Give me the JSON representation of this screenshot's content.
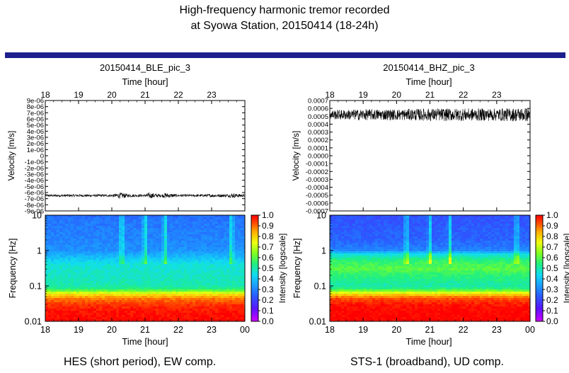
{
  "figure": {
    "title_lines": [
      "High-frequency harmonic tremor recorded",
      "at Syowa Station, 20150414 (18-24h)"
    ],
    "colors": {
      "title_rule": "#1c1f8c",
      "background": "#ffffff",
      "trace": "#000000"
    }
  },
  "panels": [
    {
      "id": "left",
      "panel_title": "20150414_BLE_pic_3",
      "top_xlabel": "Time [hour]",
      "caption": "HES (short period), EW comp.",
      "chart_data": [
        {
          "type": "line",
          "title": "",
          "xlabel": "Time [hour]",
          "ylabel": "Velocity [m/s]",
          "xlim": [
            18,
            24
          ],
          "xtick_labels": [
            "18",
            "19",
            "20",
            "21",
            "22",
            "23"
          ],
          "ylim": [
            -9e-06,
            9e-06
          ],
          "ytick_labels": [
            "9e-06",
            "8e-06",
            "7e-06",
            "6e-06",
            "5e-06",
            "4e-06",
            "3e-06",
            "2e-06",
            "1e-06",
            "0",
            "-1e-06",
            "-2e-06",
            "-3e-06",
            "-4e-06",
            "-5e-06",
            "-6e-06",
            "-7e-06",
            "-8e-06",
            "-9e-06"
          ],
          "series": [
            {
              "baseline": -6.5e-06,
              "x": [
                18.0,
                18.5,
                19.0,
                19.5,
                20.0,
                20.3,
                20.5,
                21.0,
                21.1,
                21.5,
                21.6,
                22.0,
                22.5,
                23.0,
                23.5,
                23.6,
                24.0
              ],
              "amplitude": [
                2e-07,
                2e-07,
                2e-07,
                2e-07,
                2e-07,
                5e-07,
                2.5e-07,
                2e-07,
                5e-07,
                2e-07,
                4.5e-07,
                2e-07,
                2e-07,
                2.5e-07,
                2.5e-07,
                4e-07,
                2e-07
              ]
            }
          ],
          "grid": false
        },
        {
          "type": "heatmap",
          "title": "",
          "xlabel": "Time [hour]",
          "ylabel": "Frequency [Hz]",
          "xlim": [
            18,
            24
          ],
          "xtick_labels": [
            "18",
            "19",
            "20",
            "21",
            "22",
            "23",
            "00"
          ],
          "ylim": [
            0.01,
            10
          ],
          "yscale": "log",
          "ytick_labels": [
            "10",
            "1",
            "0.1",
            "0.01"
          ],
          "colorbar": {
            "label": "Intensity [logscale]",
            "range": [
              0.0,
              1.0
            ],
            "tick_labels": [
              "1.0",
              "0.9",
              "0.8",
              "0.7",
              "0.6",
              "0.5",
              "0.4",
              "0.3",
              "0.2",
              "0.1",
              "0.0"
            ]
          },
          "frequencies": [
            0.01,
            0.02,
            0.03,
            0.045,
            0.06,
            0.08,
            0.1,
            0.2,
            0.4,
            0.6,
            1,
            2,
            4,
            7,
            10
          ],
          "intensity": [
            1.0,
            0.98,
            0.95,
            0.88,
            0.76,
            0.55,
            0.5,
            0.48,
            0.46,
            0.4,
            0.32,
            0.3,
            0.29,
            0.28,
            0.26
          ],
          "tremor_bursts_hour": [
            20.3,
            21.0,
            21.6,
            23.6
          ],
          "grid": false
        }
      ]
    },
    {
      "id": "right",
      "panel_title": "20150414_BHZ_pic_3",
      "top_xlabel": "Time [hour]",
      "caption": "STS-1 (broadband), UD comp.",
      "chart_data": [
        {
          "type": "line",
          "title": "",
          "xlabel": "Time [hour]",
          "ylabel": "Velocity [m/s]",
          "xlim": [
            18,
            24
          ],
          "xtick_labels": [
            "18",
            "19",
            "20",
            "21",
            "22",
            "23"
          ],
          "ylim": [
            -0.0007,
            0.0007
          ],
          "ytick_labels": [
            "0.0007",
            "0.0006",
            "0.0005",
            "0.0004",
            "0.0003",
            "0.0002",
            "0.0001",
            "0.0000",
            "-0.0001",
            "-0.0002",
            "-0.0003",
            "-0.0004",
            "-0.0005",
            "-0.0006",
            "-0.0007"
          ],
          "series": [
            {
              "baseline": 0.00052,
              "x": [
                18.0,
                19.0,
                20.0,
                21.0,
                22.0,
                23.0,
                24.0
              ],
              "amplitude": [
                6e-05,
                7e-05,
                7e-05,
                8e-05,
                8e-05,
                8e-05,
                9e-05
              ]
            }
          ],
          "grid": false
        },
        {
          "type": "heatmap",
          "title": "",
          "xlabel": "Time [hour]",
          "ylabel": "Frequency [Hz]",
          "xlim": [
            18,
            24
          ],
          "xtick_labels": [
            "18",
            "19",
            "20",
            "21",
            "22",
            "23",
            "00"
          ],
          "ylim": [
            0.01,
            10
          ],
          "yscale": "log",
          "ytick_labels": [
            "10",
            "1",
            "0.1",
            "0.01"
          ],
          "colorbar": {
            "label": "Intensity [logscale]",
            "range": [
              0.0,
              1.0
            ],
            "tick_labels": [
              "1.0",
              "0.9",
              "0.8",
              "0.7",
              "0.6",
              "0.5",
              "0.4",
              "0.3",
              "0.2",
              "0.1",
              "0.0"
            ]
          },
          "frequencies": [
            0.01,
            0.02,
            0.03,
            0.045,
            0.06,
            0.08,
            0.1,
            0.2,
            0.3,
            0.5,
            0.8,
            1,
            2,
            4,
            7,
            10
          ],
          "intensity": [
            1.0,
            1.0,
            0.98,
            0.92,
            0.78,
            0.56,
            0.5,
            0.55,
            0.6,
            0.56,
            0.45,
            0.3,
            0.25,
            0.24,
            0.23,
            0.22
          ],
          "tremor_bursts_hour": [
            20.3,
            21.0,
            21.6,
            23.6
          ],
          "grid": false
        }
      ]
    }
  ]
}
